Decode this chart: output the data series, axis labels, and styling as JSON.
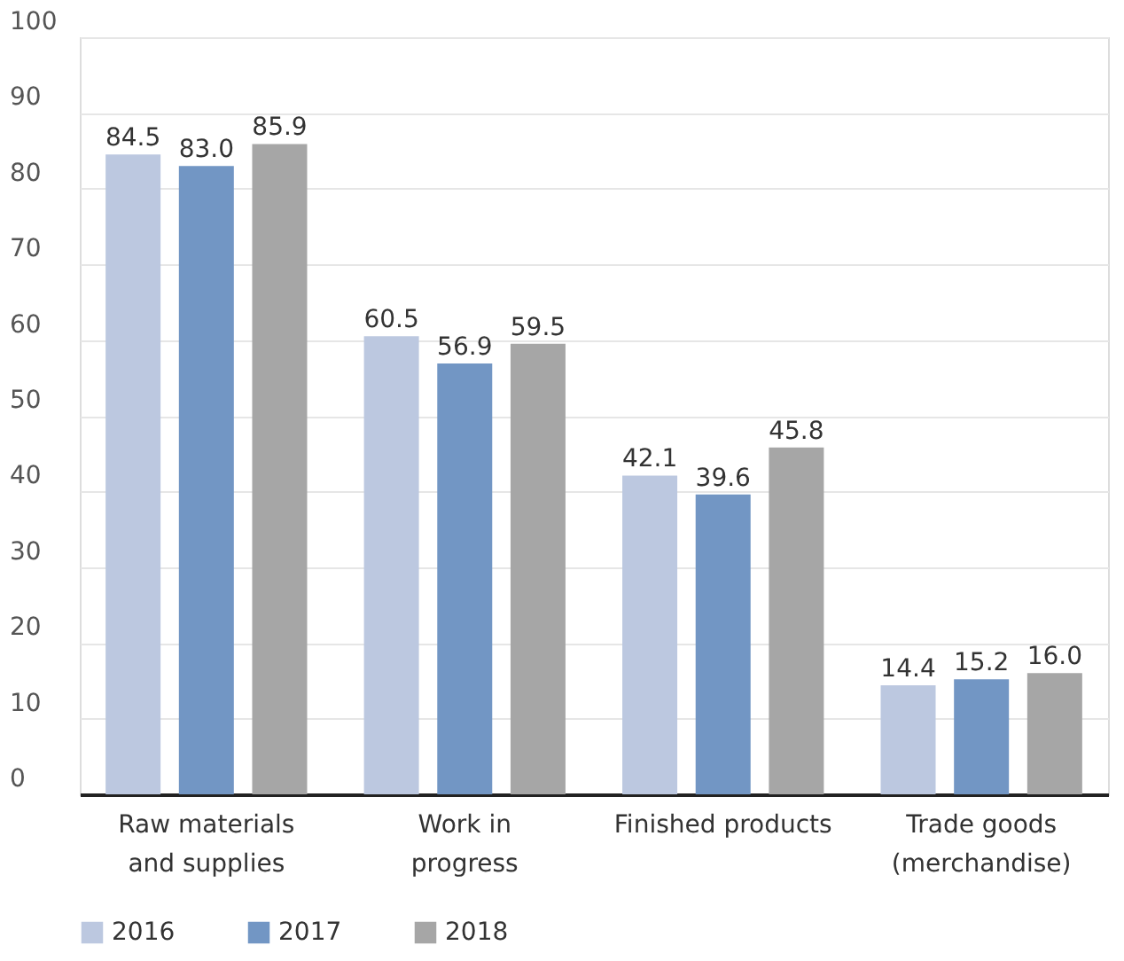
{
  "chart_data": {
    "type": "bar",
    "categories": [
      "Raw materials\nand supplies",
      "Work in\nprogress",
      "Finished products",
      "Trade goods\n(merchandise)"
    ],
    "series": [
      {
        "name": "2016",
        "color": "#bcc8e0",
        "values": [
          84.5,
          60.5,
          42.1,
          14.4
        ],
        "value_labels": [
          "84.5",
          "60.5",
          "42.1",
          "14.4"
        ]
      },
      {
        "name": "2017",
        "color": "#7296c4",
        "values": [
          83.0,
          56.9,
          39.6,
          15.2
        ],
        "value_labels": [
          "83.0",
          "56.9",
          "39.6",
          "15.2"
        ]
      },
      {
        "name": "2018",
        "color": "#a6a6a6",
        "values": [
          85.9,
          59.5,
          45.8,
          16.0
        ],
        "value_labels": [
          "85.9",
          "59.5",
          "45.8",
          "16.0"
        ]
      }
    ],
    "ylim": [
      0,
      100
    ],
    "yticks": [
      0,
      10,
      20,
      30,
      40,
      50,
      60,
      70,
      80,
      90,
      100
    ],
    "grid": "y",
    "legend": "bottom left"
  }
}
